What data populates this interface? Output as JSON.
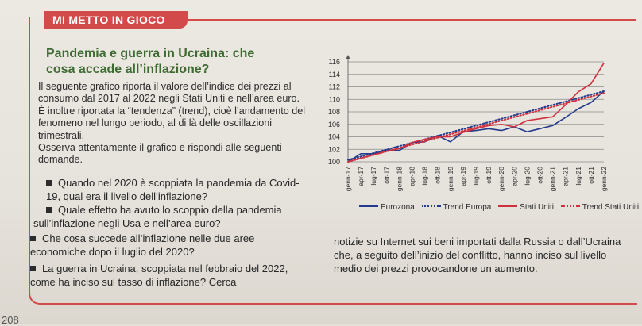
{
  "header": {
    "label": "MI METTO IN GIOCO"
  },
  "title": "Pandemia e guerra in Ucraina: che cosa accade all’inflazione?",
  "intro": {
    "p1": "Il seguente grafico riporta il valore dell’indice dei prezzi al consumo dal 2017 al 2022 negli Stati Uniti e nell’area euro. È inoltre riportata la “tendenza” (trend), cioè l’andamento del fenomeno nel lungo periodo, al di là delle oscillazioni trimestrali.",
    "p2": "Osserva attentamente il grafico e rispondi alle seguenti domande."
  },
  "questions": {
    "q1": "Quando nel 2020 è scoppiata la pandemia da Covid-19, qual era il livello dell’inflazione?",
    "q2a": "Quale effetto ha avuto lo scoppio della pandemia",
    "q2b": "sull’inflazione negli Usa e nell’area euro?",
    "q3": "Che cosa succede all’inflazione nelle due aree economiche dopo il luglio del 2020?",
    "q4": "La guerra in Ucraina, scoppiata nel febbraio del 2022, come ha inciso sul tasso di inflazione? Cerca",
    "q5": "notizie su Internet sui beni importati dalla Russia o dall’Ucraina che, a seguito dell’inizio del conflitto, hanno inciso sul livello medio dei prezzi provocandone un aumento."
  },
  "legend": {
    "eurozona": "Eurozona",
    "trend_europa": "Trend Europa",
    "stati_uniti": "Stati Uniti",
    "trend_stati_uniti": "Trend Stati Uniti"
  },
  "page_number": "208",
  "colors": {
    "accent": "#d24a4a",
    "title": "#3e6b33",
    "usa": "#d0303e",
    "euro": "#243a8c"
  },
  "chart_data": {
    "type": "line",
    "title": "",
    "xlabel": "",
    "ylabel": "",
    "ylim": [
      100,
      116
    ],
    "yticks": [
      100,
      102,
      104,
      106,
      108,
      110,
      112,
      114,
      116
    ],
    "categories": [
      "genn-17",
      "apr-17",
      "lug-17",
      "ott-17",
      "genn-18",
      "apr-18",
      "lug-18",
      "ott-18",
      "genn-19",
      "apr-19",
      "lug-19",
      "ott-19",
      "genn-20",
      "apr-20",
      "lug-20",
      "ott-20",
      "genn-21",
      "apr-21",
      "lug-21",
      "ott-21",
      "genn-22"
    ],
    "series": [
      {
        "name": "Eurozona",
        "style": "solid",
        "color": "#243a8c",
        "values": [
          100.0,
          101.3,
          101.3,
          101.9,
          101.8,
          103.1,
          103.2,
          104.2,
          103.2,
          104.8,
          105.0,
          105.3,
          105.0,
          105.6,
          104.8,
          105.3,
          105.8,
          107.1,
          108.5,
          109.5,
          111.3
        ]
      },
      {
        "name": "Trend Europa",
        "style": "dotted",
        "color": "#243a8c",
        "values": [
          100.3,
          100.85,
          101.4,
          101.95,
          102.5,
          103.05,
          103.6,
          104.15,
          104.7,
          105.25,
          105.8,
          106.35,
          106.9,
          107.45,
          108.0,
          108.55,
          109.1,
          109.65,
          110.2,
          110.75,
          111.3
        ]
      },
      {
        "name": "Stati Uniti",
        "style": "solid",
        "color": "#d0303e",
        "values": [
          100.0,
          100.6,
          101.1,
          101.7,
          102.1,
          103.1,
          103.6,
          104.0,
          104.0,
          104.7,
          105.3,
          105.8,
          106.0,
          105.6,
          106.6,
          106.9,
          107.2,
          109.1,
          111.2,
          112.5,
          115.8
        ]
      },
      {
        "name": "Trend Stati Uniti",
        "style": "dotted",
        "color": "#d0303e",
        "values": [
          100.0,
          100.55,
          101.1,
          101.65,
          102.2,
          102.75,
          103.3,
          103.85,
          104.4,
          104.95,
          105.5,
          106.05,
          106.6,
          107.15,
          107.7,
          108.25,
          108.8,
          109.35,
          109.9,
          110.45,
          111.0
        ]
      }
    ]
  }
}
